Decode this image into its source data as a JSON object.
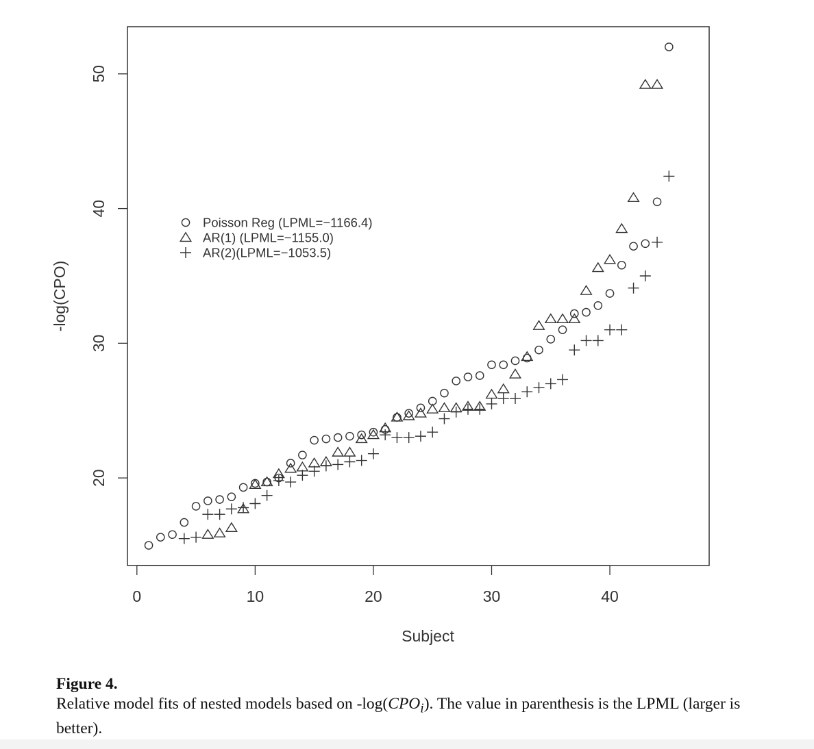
{
  "chart_data": {
    "type": "scatter",
    "xlabel": "Subject",
    "ylabel": "-log(CPO)",
    "xlim": [
      -0.8,
      48.4
    ],
    "ylim": [
      13.5,
      53.5
    ],
    "x_ticks": [
      0,
      10,
      20,
      30,
      40
    ],
    "y_ticks": [
      20,
      30,
      40,
      50
    ],
    "grid": false,
    "legend_position": "upper-left",
    "series": [
      {
        "name": "Poisson Reg (LPML=−1166.4)",
        "marker": "circle",
        "symbol": "○",
        "x": [
          1,
          2,
          3,
          4,
          5,
          6,
          7,
          8,
          9,
          10,
          11,
          12,
          13,
          14,
          15,
          16,
          17,
          18,
          19,
          20,
          21,
          22,
          23,
          24,
          25,
          26,
          27,
          28,
          29,
          30,
          31,
          32,
          33,
          34,
          35,
          36,
          37,
          38,
          39,
          40,
          41,
          42,
          43,
          44,
          45
        ],
        "y": [
          15.0,
          15.6,
          15.8,
          16.7,
          17.9,
          18.3,
          18.4,
          18.6,
          19.3,
          19.6,
          19.7,
          20.0,
          21.1,
          21.7,
          22.8,
          22.9,
          23.0,
          23.1,
          23.2,
          23.4,
          23.6,
          24.5,
          24.8,
          25.2,
          25.7,
          26.3,
          27.2,
          27.5,
          27.6,
          28.4,
          28.4,
          28.7,
          28.9,
          29.5,
          30.3,
          31.0,
          32.2,
          32.3,
          32.8,
          33.7,
          35.8,
          37.2,
          37.4,
          40.5,
          52.0
        ]
      },
      {
        "name": "AR(1) (LPML=−1155.0)",
        "marker": "triangle",
        "symbol": "△",
        "x": [
          6,
          7,
          8,
          9,
          10,
          11,
          12,
          13,
          14,
          15,
          16,
          17,
          18,
          19,
          20,
          21,
          22,
          23,
          24,
          25,
          26,
          27,
          28,
          29,
          30,
          31,
          32,
          33,
          34,
          35,
          36,
          37,
          38,
          39,
          40,
          41,
          42,
          43,
          44
        ],
        "y": [
          15.8,
          15.9,
          16.3,
          17.7,
          19.5,
          19.7,
          20.3,
          20.7,
          20.8,
          21.1,
          21.2,
          21.9,
          21.9,
          22.9,
          23.2,
          23.7,
          24.5,
          24.6,
          24.8,
          25.1,
          25.2,
          25.2,
          25.3,
          25.3,
          26.2,
          26.6,
          27.7,
          29.0,
          31.3,
          31.8,
          31.8,
          31.8,
          33.9,
          35.6,
          36.2,
          38.5,
          40.8,
          49.2,
          49.2
        ]
      },
      {
        "name": "AR(2)(LPML=−1053.5)",
        "marker": "plus",
        "symbol": "+",
        "x": [
          4,
          5,
          6,
          7,
          8,
          9,
          10,
          11,
          12,
          13,
          14,
          15,
          16,
          17,
          18,
          19,
          20,
          21,
          22,
          23,
          24,
          25,
          26,
          27,
          28,
          29,
          30,
          31,
          32,
          33,
          34,
          35,
          36,
          37,
          38,
          39,
          40,
          41,
          42,
          43,
          44,
          45
        ],
        "y": [
          15.5,
          15.6,
          17.3,
          17.3,
          17.7,
          17.8,
          18.1,
          18.7,
          19.8,
          19.7,
          20.2,
          20.5,
          20.9,
          21.0,
          21.2,
          21.3,
          21.8,
          23.2,
          23.0,
          23.0,
          23.1,
          23.4,
          24.4,
          24.9,
          25.1,
          25.1,
          25.5,
          25.9,
          25.9,
          26.4,
          26.7,
          27.0,
          27.3,
          29.5,
          30.2,
          30.2,
          31.0,
          31.0,
          34.1,
          35.0,
          37.5,
          42.4
        ]
      }
    ]
  },
  "caption": {
    "label": "Figure 4.",
    "text_before": "Relative model fits of nested models based on -log(",
    "text_italic": "CPO",
    "text_subscript": "i",
    "text_after": "). The value in parenthesis is the LPML (larger is better)."
  }
}
